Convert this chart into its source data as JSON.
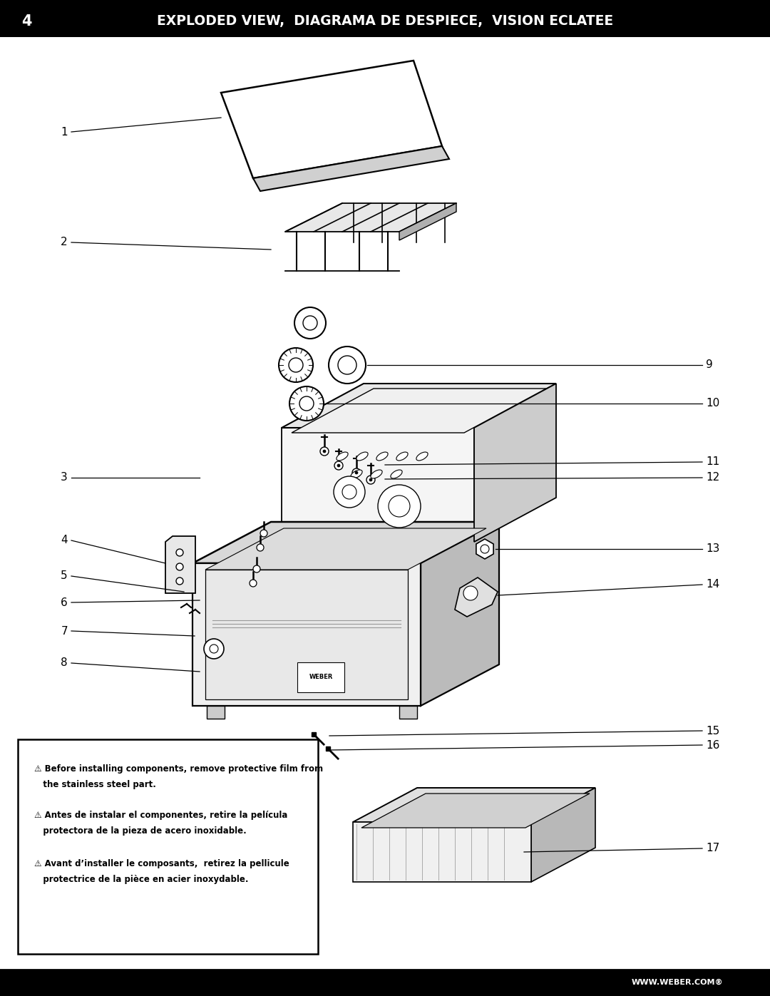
{
  "title": "EXPLODED VIEW,  DIAGRAMA DE DESPIECE,  VISION ECLATEE",
  "page_number": "4",
  "background_color": "#ffffff",
  "header_bg": "#000000",
  "header_text_color": "#ffffff",
  "footer_text": "WWW.WEBER.COM®",
  "warning_lines": [
    [
      "⚠ Before installing components, remove protective film from",
      "   the stainless steel part."
    ],
    [
      "⚠ Antes de instalar el componentes, retire la película",
      "   protectora de la pieza de acero inoxidable."
    ],
    [
      "⚠ Avant d’installer le composants,  retirez la pellicule",
      "   protectrice de la pièce en acier inoxydable."
    ]
  ]
}
